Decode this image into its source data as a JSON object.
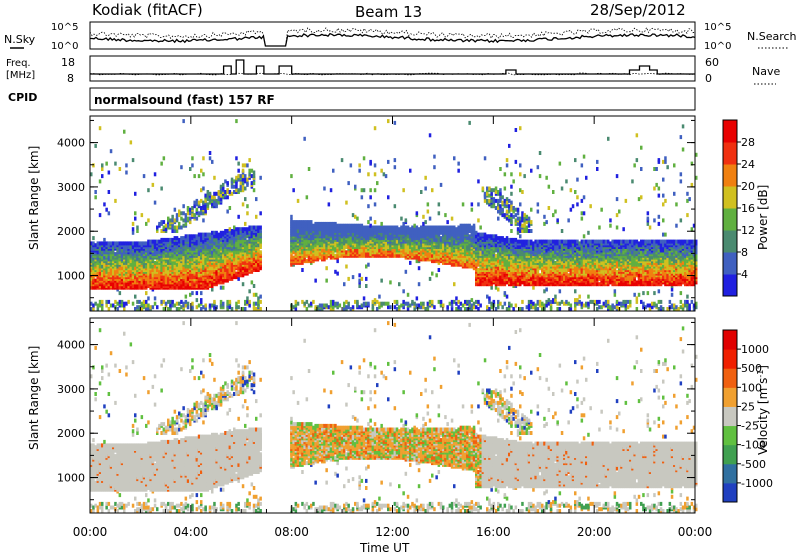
{
  "header": {
    "station": "Kodiak (fitACF)",
    "beam": "Beam 13",
    "date": "28/Sep/2012"
  },
  "summary": {
    "nsky_label": "N.Sky",
    "nsearch_label": "N.Search",
    "freq_label_line1": "Freq.",
    "freq_label_line2": "[MHz]",
    "nave_label": "Nave",
    "cpid_label": "CPID",
    "cpid_text": "normalsound (fast) 157 RF",
    "noise_ticks": [
      "10^5",
      "10^0"
    ],
    "freq_ticks": [
      "18",
      "8"
    ],
    "nave_ticks": [
      "60",
      "0"
    ]
  },
  "chart_data": [
    {
      "type": "heatmap",
      "name": "power",
      "ylabel": "Slant Range [km]",
      "xlabel": "",
      "ylim": [
        200,
        4600
      ],
      "yticks": [
        "1000",
        "2000",
        "3000",
        "4000"
      ],
      "colorbar": {
        "label": "Power [dB]",
        "ticks": [
          "4",
          "8",
          "12",
          "16",
          "20",
          "24",
          "28"
        ],
        "colors": [
          "#2020e0",
          "#4060c0",
          "#4a8a70",
          "#60b040",
          "#d0c020",
          "#f08010",
          "#f03010",
          "#e80000"
        ]
      },
      "bands": [
        {
          "x0": 0.0,
          "x1": 6.8,
          "r0": 700,
          "r1": 1800,
          "level": "strong"
        },
        {
          "x0": 7.8,
          "x1": 15.2,
          "r0": 1300,
          "r1": 2200,
          "level": "mid"
        },
        {
          "x0": 15.5,
          "x1": 21.0,
          "r0": 750,
          "r1": 1800,
          "level": "strong"
        },
        {
          "x0": 21.2,
          "x1": 24.0,
          "r0": 750,
          "r1": 1700,
          "level": "strong"
        }
      ]
    },
    {
      "type": "heatmap",
      "name": "velocity",
      "ylabel": "Slant Range [km]",
      "xlabel": "Time UT",
      "ylim": [
        200,
        4600
      ],
      "yticks": [
        "1000",
        "2000",
        "3000",
        "4000"
      ],
      "xticks": [
        "00:00",
        "04:00",
        "08:00",
        "12:00",
        "16:00",
        "20:00",
        "00:00"
      ],
      "xlim": [
        0,
        24
      ],
      "colorbar": {
        "label": "Velocity [m s",
        "label_sup": "-1",
        "label_end": "]",
        "ticks": [
          "1000",
          "500",
          "100",
          "25",
          "-25",
          "-100",
          "-500",
          "-1000"
        ],
        "colors": [
          "#2040c0",
          "#3070a0",
          "#40a050",
          "#60c040",
          "#c8c8c0",
          "#f0a030",
          "#f06010",
          "#f02000",
          "#e00000"
        ]
      }
    }
  ]
}
